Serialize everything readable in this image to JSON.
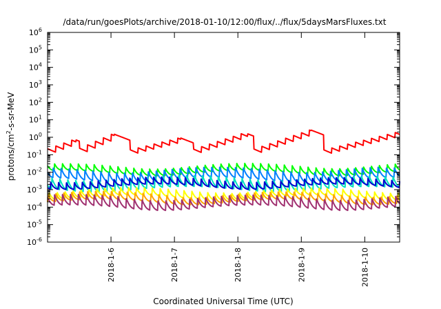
{
  "chart_data": {
    "type": "line",
    "title": "/data/run/goesPlots/archive/2018-01-10/12:00/flux/../flux/5daysMarsFluxes.txt",
    "xlabel": "Coordinated Universal Time (UTC)",
    "ylabel": "protons/cm²-s-sr-MeV",
    "ylabel_parts": {
      "a": "protons/cm",
      "sup": "2",
      "b": "-s-sr-MeV"
    },
    "y_scale": "log",
    "ylim": [
      1e-06,
      1000000.0
    ],
    "y_ticks": [
      {
        "exp": "-6"
      },
      {
        "exp": "-5"
      },
      {
        "exp": "-4"
      },
      {
        "exp": "-3"
      },
      {
        "exp": "-2"
      },
      {
        "exp": "-1"
      },
      {
        "exp": "0"
      },
      {
        "exp": "1"
      },
      {
        "exp": "2"
      },
      {
        "exp": "3"
      },
      {
        "exp": "4"
      },
      {
        "exp": "5"
      },
      {
        "exp": "6"
      }
    ],
    "x_days_range": [
      5.0,
      10.55
    ],
    "x_ticks": [
      {
        "label": "2018-1-6",
        "day": 6
      },
      {
        "label": "2018-1-7",
        "day": 7
      },
      {
        "label": "2018-1-8",
        "day": 8
      },
      {
        "label": "2018-1-9",
        "day": 9
      },
      {
        "label": "2018-1-10",
        "day": 10
      }
    ],
    "grid": false,
    "legend": "none",
    "series": [
      {
        "color": "#ff0000",
        "base": 0.15,
        "peak": 1.5,
        "period": 0.125,
        "groups": [
          {
            "start": 5.0,
            "end": 5.45,
            "peak": 0.7
          },
          {
            "start": 5.5,
            "end": 6.05,
            "peak": 1.5
          },
          {
            "start": 6.3,
            "end": 7.1,
            "peak": 0.9
          },
          {
            "start": 7.3,
            "end": 8.15,
            "peak": 1.6
          },
          {
            "start": 8.25,
            "end": 9.15,
            "peak": 2.6
          },
          {
            "start": 9.35,
            "end": 10.55,
            "peak": 1.9
          }
        ]
      },
      {
        "color": "#00ff00",
        "base": 0.009,
        "peak": 0.025,
        "period": 0.125
      },
      {
        "color": "#0080ff",
        "base": 0.0035,
        "peak": 0.015,
        "period": 0.125
      },
      {
        "color": "#00e0c0",
        "base": 0.001,
        "peak": 0.005,
        "period": 0.125
      },
      {
        "color": "#0000d0",
        "base": 0.0015,
        "peak": 0.004,
        "period": 0.125
      },
      {
        "color": "#ffff00",
        "base": 0.00035,
        "peak": 0.001,
        "period": 0.125
      },
      {
        "color": "#ffa500",
        "base": 0.0002,
        "peak": 0.0006,
        "period": 0.125
      },
      {
        "color": "#a03070",
        "base": 9e-05,
        "peak": 0.0004,
        "period": 0.125
      }
    ]
  }
}
